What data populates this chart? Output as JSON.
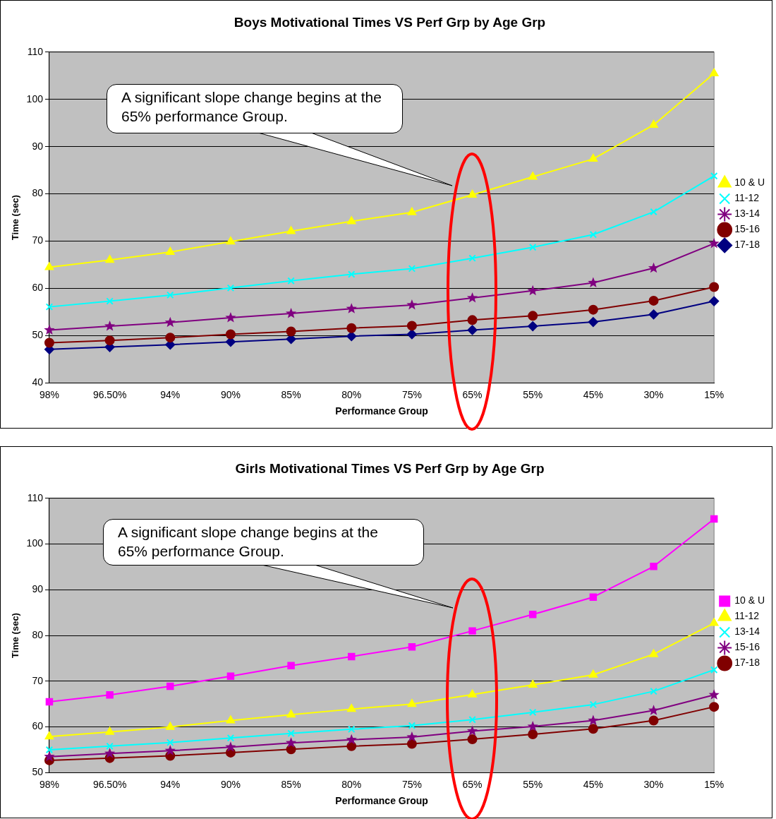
{
  "chart_data": [
    {
      "type": "line",
      "title": "Boys Motivational Times VS Perf Grp by Age Grp",
      "xlabel": "Performance Group",
      "ylabel": "Time (sec)",
      "categories": [
        "98%",
        "96.50%",
        "94%",
        "90%",
        "85%",
        "80%",
        "75%",
        "65%",
        "55%",
        "45%",
        "30%",
        "15%"
      ],
      "ylim": [
        40,
        110
      ],
      "yticks": [
        40,
        50,
        60,
        70,
        80,
        90,
        100,
        110
      ],
      "grid": "y",
      "legend": "right",
      "annotations": [
        "A significant slope change begins at the 65% performance Group."
      ],
      "series": [
        {
          "name": "10 & U",
          "color": "#ffff00",
          "marker": "triangle",
          "values": [
            64.5,
            66,
            67.7,
            69.9,
            72.1,
            74.2,
            76.1,
            79.8,
            83.6,
            87.4,
            94.6,
            105.5
          ]
        },
        {
          "name": "11-12",
          "color": "#00ffff",
          "marker": "cross",
          "values": [
            56.1,
            57.3,
            58.6,
            60.1,
            61.6,
            63,
            64.2,
            66.4,
            68.7,
            71.4,
            76.2,
            83.8
          ]
        },
        {
          "name": "13-14",
          "color": "#800080",
          "marker": "star",
          "values": [
            51.2,
            52,
            52.8,
            53.8,
            54.7,
            55.7,
            56.5,
            58,
            59.5,
            61.2,
            64.3,
            69.5
          ]
        },
        {
          "name": "15-16",
          "color": "#800000",
          "marker": "circle",
          "values": [
            48.5,
            49,
            49.6,
            50.3,
            50.9,
            51.6,
            52.1,
            53.3,
            54.2,
            55.5,
            57.4,
            60.3
          ]
        },
        {
          "name": "17-18",
          "color": "#000080",
          "marker": "diamond",
          "values": [
            47.1,
            47.6,
            48.1,
            48.7,
            49.3,
            49.9,
            50.3,
            51.2,
            52,
            52.9,
            54.5,
            57.3
          ]
        }
      ]
    },
    {
      "type": "line",
      "title": "Girls Motivational Times VS Perf Grp by Age Grp",
      "xlabel": "Performance Group",
      "ylabel": "Time (sec)",
      "categories": [
        "98%",
        "96.50%",
        "94%",
        "90%",
        "85%",
        "80%",
        "75%",
        "65%",
        "55%",
        "45%",
        "30%",
        "15%"
      ],
      "ylim": [
        50,
        110
      ],
      "yticks": [
        50,
        60,
        70,
        80,
        90,
        100,
        110
      ],
      "grid": "y",
      "legend": "right",
      "annotations": [
        "A significant slope change begins at the 65% performance Group."
      ],
      "series": [
        {
          "name": "10 & U",
          "color": "#ff00ff",
          "marker": "square",
          "values": [
            65.5,
            67,
            68.9,
            71.1,
            73.4,
            75.4,
            77.5,
            81,
            84.6,
            88.4,
            95.1,
            105.5
          ]
        },
        {
          "name": "11-12",
          "color": "#ffff00",
          "marker": "triangle",
          "values": [
            57.9,
            58.9,
            60,
            61.4,
            62.7,
            63.9,
            65,
            67.1,
            69.2,
            71.4,
            75.9,
            82.7
          ]
        },
        {
          "name": "13-14",
          "color": "#00ffff",
          "marker": "cross",
          "values": [
            55,
            55.8,
            56.6,
            57.6,
            58.6,
            59.5,
            60.3,
            61.6,
            63.2,
            64.9,
            67.8,
            72.5
          ]
        },
        {
          "name": "15-16",
          "color": "#800080",
          "marker": "star",
          "values": [
            53.5,
            54.2,
            54.8,
            55.6,
            56.5,
            57.2,
            57.8,
            59.1,
            60.1,
            61.4,
            63.6,
            67
          ]
        },
        {
          "name": "17-18",
          "color": "#800000",
          "marker": "circle",
          "values": [
            52.7,
            53.2,
            53.7,
            54.4,
            55.1,
            55.8,
            56.3,
            57.3,
            58.4,
            59.6,
            61.4,
            64.4
          ]
        }
      ]
    }
  ]
}
